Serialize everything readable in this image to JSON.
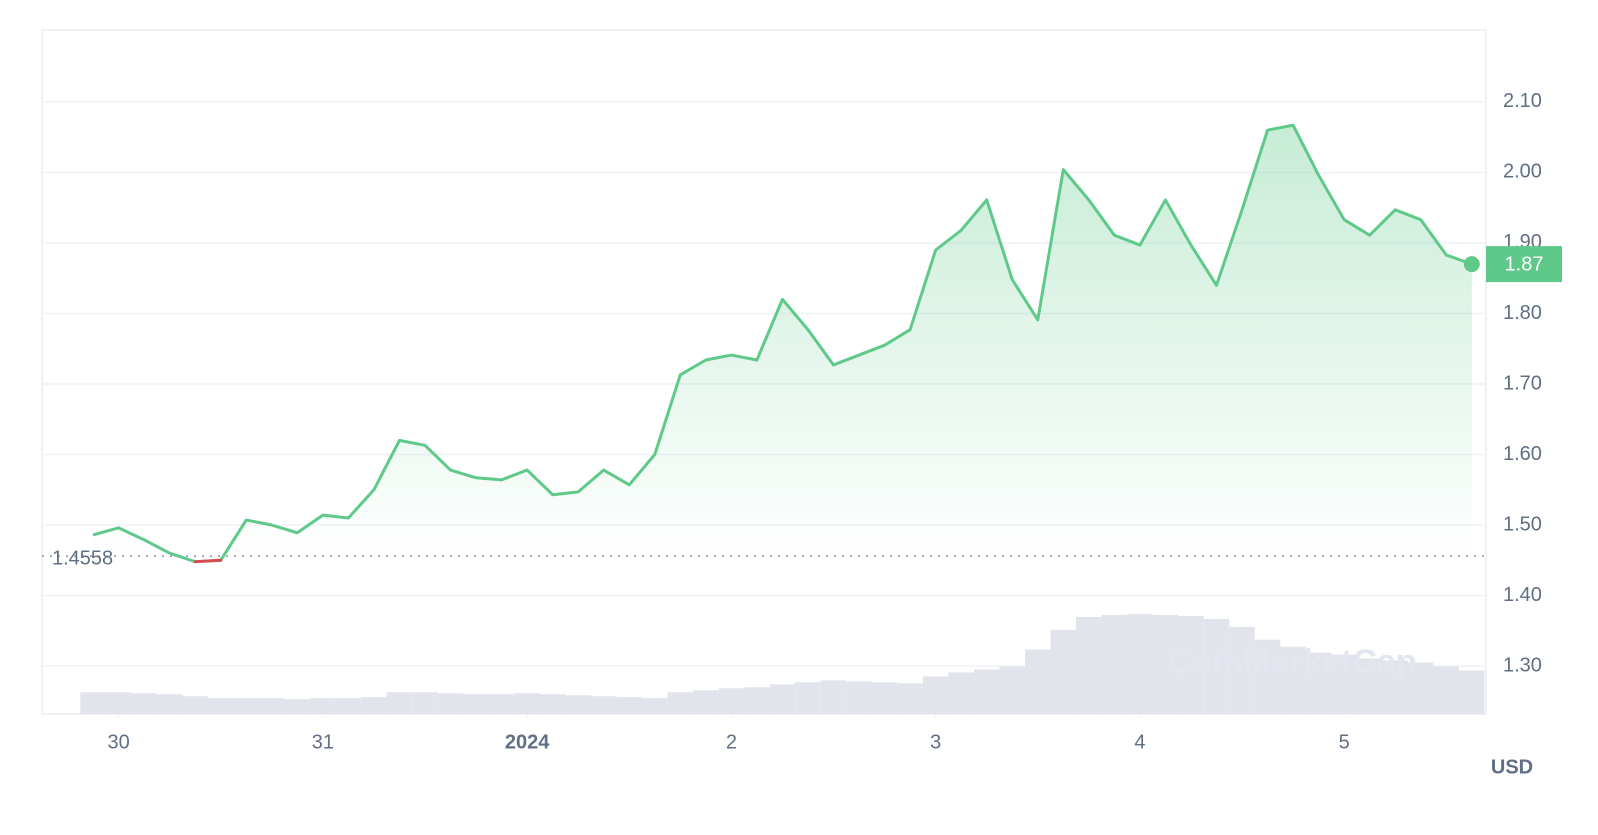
{
  "chart_data": {
    "type": "line",
    "x": [
      "2023-12-29T21:00",
      "2023-12-30T00:00",
      "2023-12-30T03:00",
      "2023-12-30T06:00",
      "2023-12-30T09:00",
      "2023-12-30T12:00",
      "2023-12-30T15:00",
      "2023-12-30T18:00",
      "2023-12-30T21:00",
      "2023-12-31T00:00",
      "2023-12-31T03:00",
      "2023-12-31T06:00",
      "2023-12-31T09:00",
      "2023-12-31T12:00",
      "2023-12-31T15:00",
      "2023-12-31T18:00",
      "2023-12-31T21:00",
      "2024-01-01T00:00",
      "2024-01-01T03:00",
      "2024-01-01T06:00",
      "2024-01-01T09:00",
      "2024-01-01T12:00",
      "2024-01-01T15:00",
      "2024-01-01T18:00",
      "2024-01-01T21:00",
      "2024-01-02T00:00",
      "2024-01-02T03:00",
      "2024-01-02T06:00",
      "2024-01-02T09:00",
      "2024-01-02T12:00",
      "2024-01-02T15:00",
      "2024-01-02T18:00",
      "2024-01-02T21:00",
      "2024-01-03T00:00",
      "2024-01-03T03:00",
      "2024-01-03T06:00",
      "2024-01-03T09:00",
      "2024-01-03T12:00",
      "2024-01-03T15:00",
      "2024-01-03T18:00",
      "2024-01-03T21:00",
      "2024-01-04T00:00",
      "2024-01-04T03:00",
      "2024-01-04T06:00",
      "2024-01-04T09:00",
      "2024-01-04T12:00",
      "2024-01-04T15:00",
      "2024-01-04T18:00",
      "2024-01-04T21:00",
      "2024-01-05T00:00",
      "2024-01-05T03:00",
      "2024-01-05T06:00",
      "2024-01-05T09:00",
      "2024-01-05T12:00",
      "2024-01-05T15:00"
    ],
    "series": [
      {
        "color": "#5fc98a",
        "below_color": "#d64b4b",
        "values": [
          1.486,
          1.496,
          1.479,
          1.46,
          1.448,
          1.45,
          1.507,
          1.5,
          1.489,
          1.514,
          1.51,
          1.55,
          1.62,
          1.613,
          1.578,
          1.567,
          1.564,
          1.578,
          1.543,
          1.547,
          1.578,
          1.557,
          1.6,
          1.713,
          1.734,
          1.741,
          1.734,
          1.82,
          1.777,
          1.727,
          1.741,
          1.755,
          1.777,
          1.89,
          1.918,
          1.961,
          1.848,
          1.791,
          2.004,
          1.961,
          1.911,
          1.897,
          1.961,
          1.897,
          1.84,
          1.947,
          2.06,
          2.067,
          1.996,
          1.933,
          1.911,
          1.947,
          1.933,
          1.883,
          1.87
        ]
      }
    ],
    "volume": {
      "color": "#e2e4ec",
      "values": [
        22,
        22,
        21,
        20,
        18,
        16,
        16,
        16,
        15,
        16,
        16,
        17,
        22,
        22,
        21,
        20,
        20,
        21,
        20,
        19,
        18,
        17,
        16,
        22,
        24,
        26,
        27,
        30,
        32,
        34,
        33,
        32,
        31,
        38,
        42,
        45,
        48,
        65,
        85,
        98,
        100,
        101,
        100,
        99,
        96,
        88,
        75,
        68,
        62,
        60,
        56,
        54,
        52,
        48,
        44
      ]
    },
    "baseline": 1.4558,
    "xlim": [
      "2023-12-29T15:00",
      "2024-01-05T16:40"
    ],
    "xticks": [
      {
        "value": "2023-12-30T00:00",
        "label": "30"
      },
      {
        "value": "2023-12-31T00:00",
        "label": "31"
      },
      {
        "value": "2024-01-01T00:00",
        "label": "2024"
      },
      {
        "value": "2024-01-02T00:00",
        "label": "2"
      },
      {
        "value": "2024-01-03T00:00",
        "label": "3"
      },
      {
        "value": "2024-01-04T00:00",
        "label": "4"
      },
      {
        "value": "2024-01-05T00:00",
        "label": "5"
      }
    ],
    "ylim": [
      1.232,
      2.202
    ],
    "yticks": [
      {
        "value": 1.3,
        "label": "1.30"
      },
      {
        "value": 1.4,
        "label": "1.40"
      },
      {
        "value": 1.5,
        "label": "1.50"
      },
      {
        "value": 1.6,
        "label": "1.60"
      },
      {
        "value": 1.7,
        "label": "1.70"
      },
      {
        "value": 1.8,
        "label": "1.80"
      },
      {
        "value": 1.9,
        "label": "1.90"
      },
      {
        "value": 2.0,
        "label": "2.00"
      },
      {
        "value": 2.1,
        "label": "2.10"
      }
    ],
    "grid": true,
    "currency": "USD",
    "watermark": "CoinMarketCap"
  }
}
